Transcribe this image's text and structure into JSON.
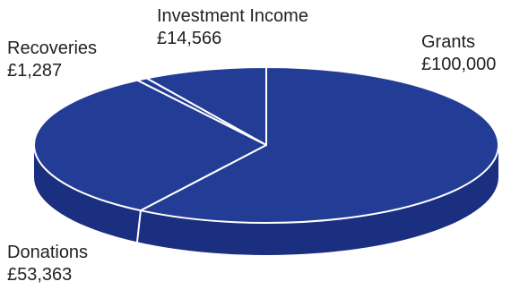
{
  "chart_data": {
    "type": "pie",
    "style": "3d",
    "categories": [
      "Grants",
      "Donations",
      "Recoveries",
      "Investment Income"
    ],
    "values": [
      100000,
      53363,
      1287,
      14566
    ],
    "value_labels": [
      "£100,000",
      "£53,363",
      "£1,287",
      "£14,566"
    ],
    "colors": {
      "top": "#233d96",
      "side": "#1b2f80",
      "divider": "#ffffff"
    },
    "legend": "none"
  }
}
